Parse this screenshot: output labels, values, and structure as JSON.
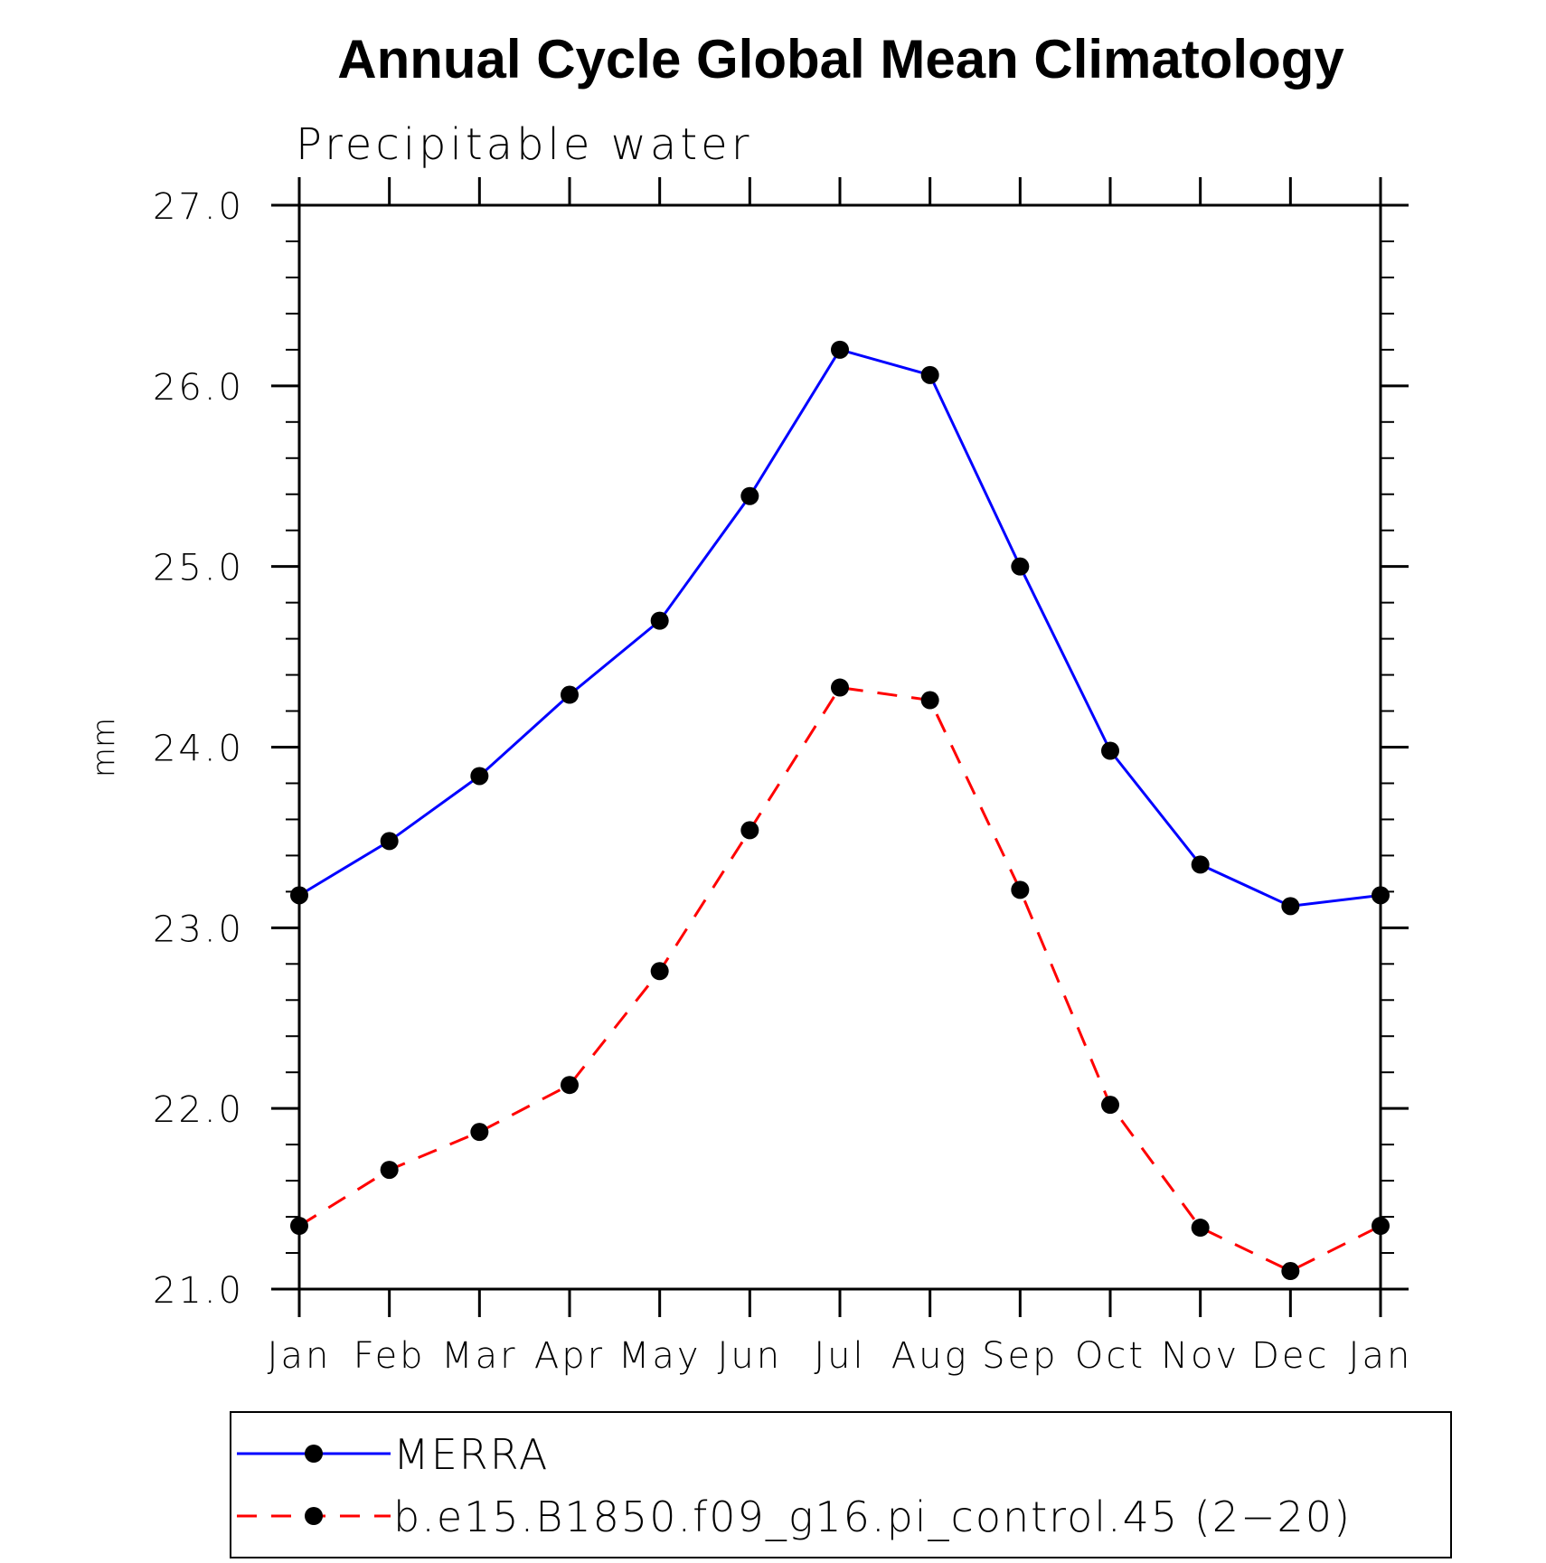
{
  "chart_data": {
    "type": "line",
    "title": "Annual Cycle Global Mean Climatology",
    "subtitle": "Precipitable water",
    "xlabel": "",
    "ylabel": "mm",
    "categories": [
      "Jan",
      "Feb",
      "Mar",
      "Apr",
      "May",
      "Jun",
      "Jul",
      "Aug",
      "Sep",
      "Oct",
      "Nov",
      "Dec",
      "Jan"
    ],
    "ylim": [
      21.0,
      27.0
    ],
    "yticks": [
      "21.0",
      "22.0",
      "23.0",
      "24.0",
      "25.0",
      "26.0",
      "27.0"
    ],
    "grid": false,
    "legend_position": "bottom",
    "series": [
      {
        "name": "MERRA",
        "color": "#0000ff",
        "dash": "solid",
        "values": [
          23.18,
          23.48,
          23.84,
          24.29,
          24.7,
          25.39,
          26.2,
          26.06,
          25.0,
          23.98,
          23.35,
          23.12,
          23.18
        ]
      },
      {
        "name": "b.e15.B1850.f09_g16.pi_control.45 (2−20)",
        "color": "#ff0000",
        "dash": "dashed",
        "values": [
          21.35,
          21.66,
          21.87,
          22.13,
          22.76,
          23.54,
          24.33,
          24.26,
          23.21,
          22.02,
          21.34,
          21.1,
          21.35
        ]
      }
    ]
  }
}
